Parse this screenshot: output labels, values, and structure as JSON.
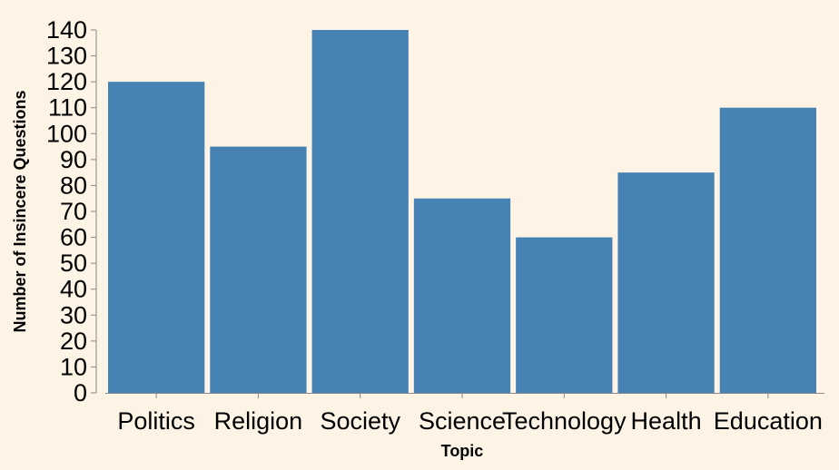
{
  "chart_data": {
    "type": "bar",
    "categories": [
      "Politics",
      "Religion",
      "Society",
      "Science",
      "Technology",
      "Health",
      "Education"
    ],
    "values": [
      120,
      95,
      140,
      75,
      60,
      85,
      110
    ],
    "title": "",
    "xlabel": "Topic",
    "ylabel": "Number of Insincere Questions",
    "ylim": [
      0,
      140
    ],
    "yticks": [
      0,
      10,
      20,
      30,
      40,
      50,
      60,
      70,
      80,
      90,
      100,
      110,
      120,
      130,
      140
    ],
    "grid": false,
    "legend": "none",
    "colors": {
      "bar": "#4682b4",
      "background": "#fdf4e6",
      "axis": "#888888"
    }
  }
}
